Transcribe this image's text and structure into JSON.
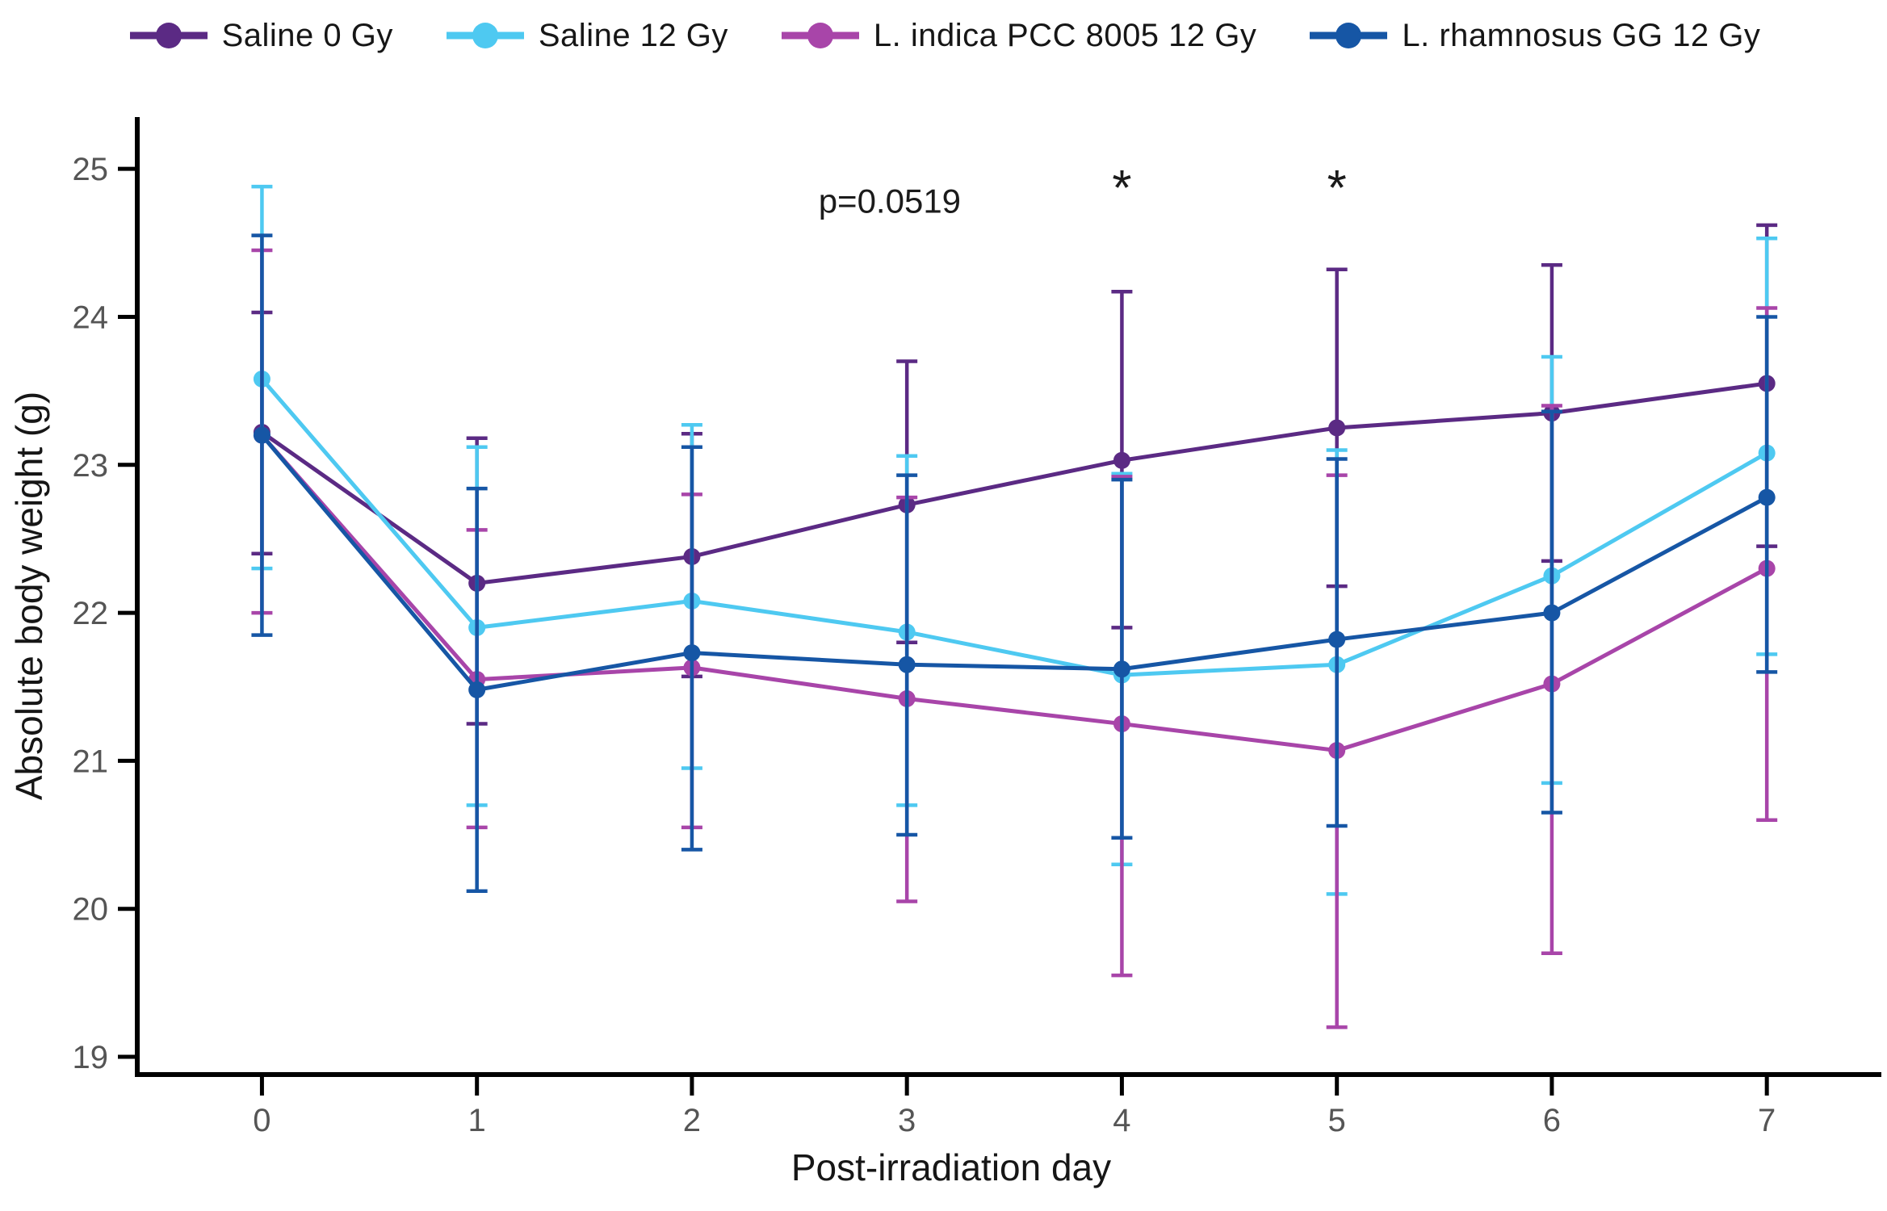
{
  "chart_data": {
    "type": "line",
    "title": "",
    "xlabel": "Post-irradiation day",
    "ylabel": "Absolute body weight (g)",
    "x": [
      0,
      1,
      2,
      3,
      4,
      5,
      6,
      7
    ],
    "xticks": [
      0,
      1,
      2,
      3,
      4,
      5,
      6,
      7
    ],
    "yticks": [
      19,
      20,
      21,
      22,
      23,
      24,
      25
    ],
    "xlim": [
      -0.58,
      7.42
    ],
    "ylim": [
      18.88,
      25.35
    ],
    "grid": false,
    "legend_position": "top",
    "error_bars": "symmetric caps, absolute lower/upper whisker values per point",
    "axis_color": "#000000",
    "tick_label_color": "#555555",
    "series": [
      {
        "name": "Saline 0 Gy",
        "color": "#5b2a84",
        "means": [
          23.22,
          22.2,
          22.38,
          22.73,
          23.03,
          23.25,
          23.35,
          23.55
        ],
        "lower": [
          22.4,
          21.25,
          21.57,
          21.8,
          21.9,
          22.18,
          22.35,
          22.45
        ],
        "upper": [
          24.03,
          23.18,
          23.21,
          23.7,
          24.17,
          24.32,
          24.35,
          24.62
        ]
      },
      {
        "name": "Saline 12 Gy",
        "color": "#4ec9f1",
        "means": [
          23.58,
          21.9,
          22.08,
          21.87,
          21.58,
          21.65,
          22.25,
          23.08
        ],
        "lower": [
          22.3,
          20.7,
          20.95,
          20.7,
          20.3,
          20.1,
          20.85,
          21.72
        ],
        "upper": [
          24.88,
          23.12,
          23.27,
          23.06,
          22.94,
          23.1,
          23.73,
          24.53
        ]
      },
      {
        "name": "L. indica PCC 8005 12 Gy",
        "color": "#a845a9",
        "means": [
          23.2,
          21.55,
          21.63,
          21.42,
          21.25,
          21.07,
          21.52,
          22.3
        ],
        "lower": [
          22.0,
          20.55,
          20.55,
          20.05,
          19.55,
          19.2,
          19.7,
          20.6
        ],
        "upper": [
          24.45,
          22.56,
          22.8,
          22.78,
          22.92,
          22.93,
          23.4,
          24.06
        ]
      },
      {
        "name": "L. rhamnosus GG 12 Gy",
        "color": "#1656a5",
        "means": [
          23.2,
          21.48,
          21.73,
          21.65,
          21.62,
          21.82,
          22.0,
          22.78
        ],
        "lower": [
          21.85,
          20.12,
          20.4,
          20.5,
          20.48,
          20.56,
          20.65,
          21.6
        ],
        "upper": [
          24.55,
          22.84,
          23.12,
          22.93,
          22.9,
          23.04,
          23.36,
          24.0
        ]
      }
    ],
    "annotations": [
      {
        "text": "p=0.0519",
        "x": 2.92,
        "y": 24.78,
        "kind": "pvalue"
      },
      {
        "text": "*",
        "x": 4,
        "y": 24.87,
        "kind": "star"
      },
      {
        "text": "*",
        "x": 5,
        "y": 24.87,
        "kind": "star"
      }
    ]
  }
}
